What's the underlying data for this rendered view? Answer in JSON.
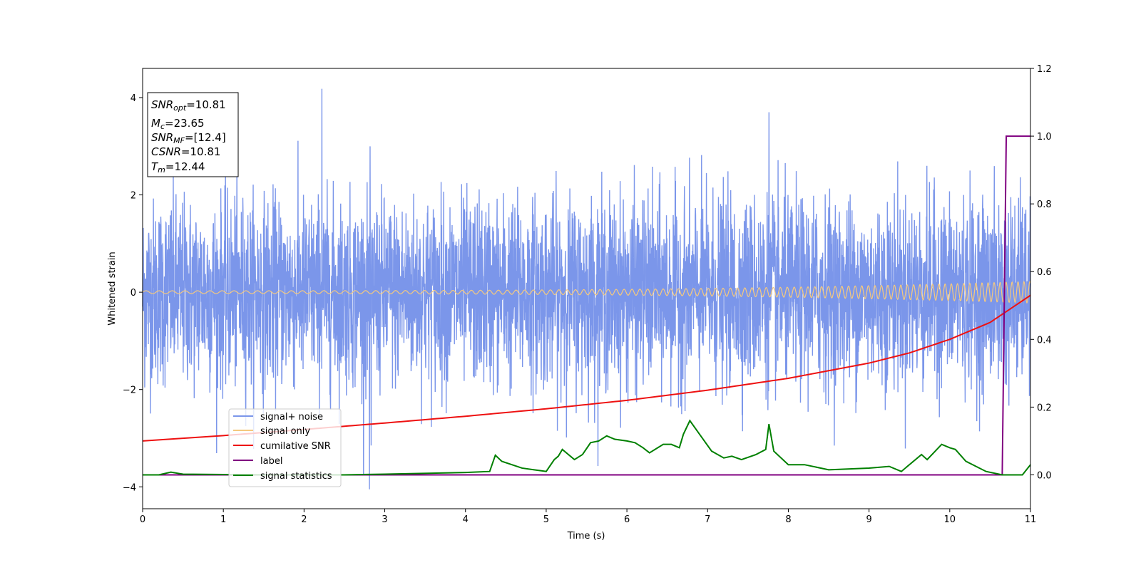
{
  "chart_data": {
    "type": "line",
    "xlabel": "Time (s)",
    "ylabel": "Whitened strain",
    "xlim": [
      0,
      11
    ],
    "ylim": [
      -4.45,
      4.6
    ],
    "ylim_right": [
      -0.1,
      1.2
    ],
    "x_ticks": [
      "0",
      "1",
      "2",
      "3",
      "4",
      "5",
      "6",
      "7",
      "8",
      "9",
      "10",
      "11"
    ],
    "y_ticks": [
      "4",
      "2",
      "0",
      "−2",
      "−4"
    ],
    "y_tick_values": [
      4,
      2,
      0,
      -2,
      -4
    ],
    "y_right_ticks": [
      "1.2",
      "1.0",
      "0.8",
      "0.6",
      "0.4",
      "0.2",
      "0.0"
    ],
    "y_right_tick_values": [
      1.2,
      1.0,
      0.8,
      0.6,
      0.4,
      0.2,
      0.0
    ],
    "grid": false,
    "legend_position": "lower-left",
    "annotation": {
      "snr_opt": {
        "base": "SNR",
        "sub": "opt",
        "value": "=10.81"
      },
      "mc": {
        "base": "M",
        "sub": "c",
        "value": "=23.65"
      },
      "snr_mf": {
        "base": "SNR",
        "sub": "MF",
        "value": "=[12.4]"
      },
      "csnr": {
        "base": "CSNR",
        "value": "=10.81"
      },
      "tm": {
        "base": "T",
        "sub": "m",
        "value": "=12.44"
      }
    },
    "series": [
      {
        "name": "signal+ noise",
        "axis": "left",
        "color": "#7b96ea",
        "description_level": {
          "std": 0.95,
          "min": -4.05,
          "max": 4.18
        },
        "peaks": [
          [
            2.22,
            4.18
          ],
          [
            7.76,
            3.7
          ],
          [
            2.81,
            -4.05
          ],
          [
            2.83,
            -3.15
          ]
        ]
      },
      {
        "name": "signal only",
        "axis": "left",
        "color": "#f5c97e",
        "amplitude_start": 0.03,
        "amplitude_end": 0.22
      },
      {
        "name": "cumilative SNR",
        "axis": "right",
        "color": "#ee1111",
        "x": [
          0,
          1,
          2,
          3,
          4,
          5,
          6,
          7,
          8,
          9,
          9.5,
          10,
          10.5,
          11
        ],
        "y": [
          0.1,
          0.116,
          0.134,
          0.153,
          0.173,
          0.195,
          0.22,
          0.25,
          0.285,
          0.33,
          0.36,
          0.4,
          0.45,
          0.53
        ]
      },
      {
        "name": "label",
        "axis": "right",
        "color": "#800080",
        "x": [
          0,
          10.65,
          10.7,
          11
        ],
        "y": [
          0,
          0,
          1,
          1
        ]
      },
      {
        "name": "signal statistics",
        "axis": "right",
        "color": "#008000",
        "x": [
          0,
          0.2,
          0.35,
          0.5,
          1.5,
          2.5,
          3.0,
          4.0,
          4.3,
          4.37,
          4.45,
          4.7,
          4.85,
          5.0,
          5.1,
          5.15,
          5.2,
          5.35,
          5.45,
          5.55,
          5.65,
          5.75,
          5.85,
          6.0,
          6.1,
          6.2,
          6.28,
          6.45,
          6.55,
          6.65,
          6.7,
          6.78,
          6.9,
          7.05,
          7.2,
          7.3,
          7.42,
          7.6,
          7.72,
          7.76,
          7.82,
          8.0,
          8.2,
          8.5,
          9.0,
          9.25,
          9.4,
          9.65,
          9.72,
          9.82,
          9.9,
          10.0,
          10.07,
          10.2,
          10.45,
          10.65,
          10.9,
          11.0
        ],
        "y": [
          0.0,
          0.0,
          0.008,
          0.002,
          0.0,
          0.0,
          0.002,
          0.007,
          0.01,
          0.058,
          0.04,
          0.02,
          0.015,
          0.01,
          0.045,
          0.055,
          0.075,
          0.045,
          0.06,
          0.095,
          0.1,
          0.115,
          0.105,
          0.1,
          0.095,
          0.08,
          0.065,
          0.09,
          0.09,
          0.08,
          0.12,
          0.16,
          0.12,
          0.07,
          0.05,
          0.055,
          0.045,
          0.06,
          0.075,
          0.15,
          0.07,
          0.03,
          0.03,
          0.015,
          0.02,
          0.025,
          0.01,
          0.06,
          0.045,
          0.07,
          0.09,
          0.08,
          0.075,
          0.04,
          0.01,
          0.0,
          0.0,
          0.03
        ]
      }
    ]
  }
}
